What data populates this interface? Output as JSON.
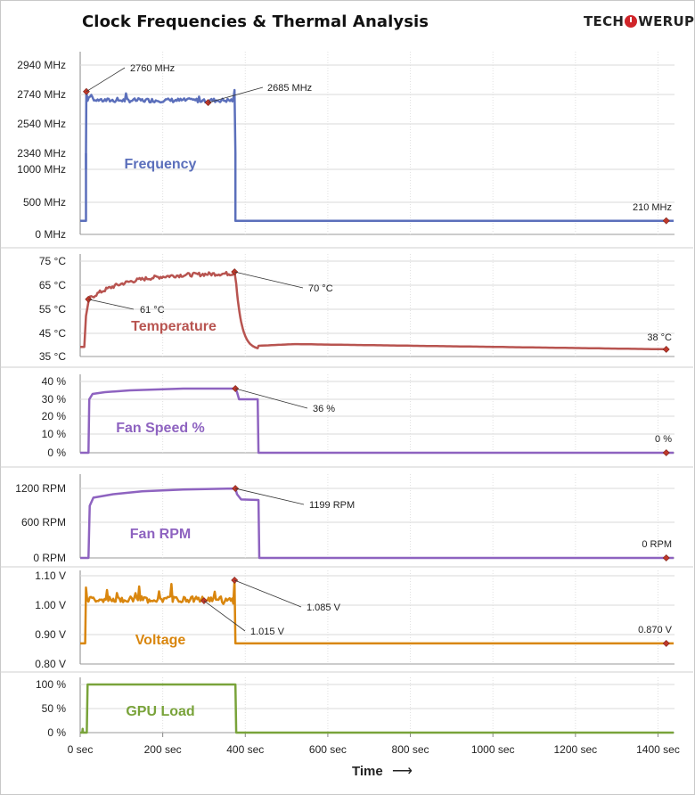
{
  "title": "Clock Frequencies & Thermal Analysis",
  "logo": {
    "part1": "TECH",
    "part2": "WERUP",
    "icon": "power-button-icon"
  },
  "x_axis_title": "Time",
  "x_axis_arrow": "⟶",
  "chart_data": {
    "type": "line",
    "x_ticks": [
      "0 sec",
      "200 sec",
      "400 sec",
      "600 sec",
      "800 sec",
      "1000 sec",
      "1200 sec",
      "1400 sec"
    ],
    "x_range": [
      0,
      1440
    ],
    "panels": [
      {
        "key": "frequency",
        "name": "Frequency",
        "color": "#5b6fbb",
        "y_ticks": [
          "2940 MHz",
          "2740 MHz",
          "2540 MHz",
          "2340 MHz",
          "1000 MHz",
          "500 MHz",
          "0 MHz"
        ],
        "segments": [
          {
            "t": 0,
            "v": 210
          },
          {
            "t": 14,
            "v": 210
          },
          {
            "t": 15,
            "v": 2760
          },
          {
            "t": 60,
            "v": 2700
          },
          {
            "t": 200,
            "v": 2695
          },
          {
            "t": 310,
            "v": 2685
          },
          {
            "t": 375,
            "v": 2690
          },
          {
            "t": 377,
            "v": 210
          },
          {
            "t": 1440,
            "v": 210
          }
        ],
        "annotations": [
          "2760 MHz",
          "2685 MHz",
          "210 MHz"
        ]
      },
      {
        "key": "temperature",
        "name": "Temperature",
        "color": "#b85450",
        "y_ticks": [
          "75 °C",
          "65 °C",
          "55 °C",
          "45 °C",
          "35 °C"
        ],
        "y_range": [
          35,
          75
        ],
        "annotations": [
          "61 °C",
          "70 °C",
          "38 °C"
        ]
      },
      {
        "key": "fan_speed",
        "name": "Fan Speed %",
        "color": "#8e63c0",
        "y_ticks": [
          "40 %",
          "30 %",
          "20 %",
          "10 %",
          "0 %"
        ],
        "y_range": [
          0,
          40
        ],
        "annotations": [
          "36 %",
          "0 %"
        ]
      },
      {
        "key": "fan_rpm",
        "name": "Fan RPM",
        "color": "#8e63c0",
        "y_ticks": [
          "1200 RPM",
          "600 RPM",
          "0 RPM"
        ],
        "y_range": [
          0,
          1400
        ],
        "annotations": [
          "1199 RPM",
          "0 RPM"
        ]
      },
      {
        "key": "voltage",
        "name": "Voltage",
        "color": "#d9860e",
        "y_ticks": [
          "1.10 V",
          "1.00 V",
          "0.90 V",
          "0.80 V"
        ],
        "y_range": [
          0.8,
          1.1
        ],
        "annotations": [
          "1.085 V",
          "1.015 V",
          "0.870 V"
        ]
      },
      {
        "key": "gpu_load",
        "name": "GPU Load",
        "color": "#79a33a",
        "y_ticks": [
          "100 %",
          "50 %",
          "0 %"
        ],
        "y_range": [
          0,
          100
        ],
        "annotations": []
      }
    ]
  }
}
